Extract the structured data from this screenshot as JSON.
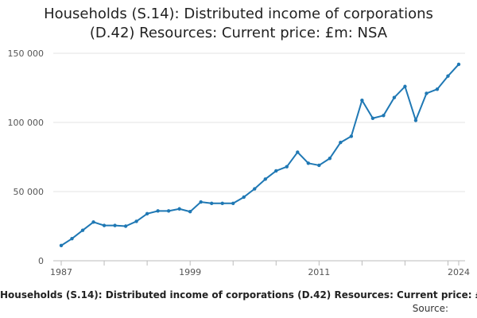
{
  "chart_data": {
    "type": "line",
    "title": "Households (S.14): Distributed income of corporations (D.42) Resources: Current price: £m: NSA",
    "xlabel": "",
    "ylabel": "",
    "x": [
      1987,
      1988,
      1989,
      1990,
      1991,
      1992,
      1993,
      1994,
      1995,
      1996,
      1997,
      1998,
      1999,
      2000,
      2001,
      2002,
      2003,
      2004,
      2005,
      2006,
      2007,
      2008,
      2009,
      2010,
      2011,
      2012,
      2013,
      2014,
      2015,
      2016,
      2017,
      2018,
      2019,
      2020,
      2021,
      2022,
      2023,
      2024
    ],
    "series": [
      {
        "name": "Households (S.14): Distributed income of corporations (D.42) Resources: Current price: £m: NSA",
        "color": "#1f78b4",
        "values": [
          11000,
          16000,
          22000,
          28000,
          25500,
          25500,
          25000,
          28500,
          34000,
          36000,
          36000,
          37500,
          35500,
          42500,
          41500,
          41500,
          41500,
          46000,
          52000,
          59000,
          65000,
          68000,
          78500,
          70500,
          69000,
          74000,
          85500,
          90000,
          116000,
          103000,
          105000,
          118000,
          126000,
          101500,
          121000,
          124000,
          133500,
          142000
        ]
      }
    ],
    "xticks": [
      "1987",
      "1999",
      "2011",
      "2024"
    ],
    "yticks": [
      "0",
      "50 000",
      "100 000",
      "150 000"
    ],
    "ytick_values": [
      0,
      50000,
      100000,
      150000
    ],
    "ylim": [
      0,
      150000
    ],
    "xlim": [
      1987,
      2024
    ],
    "grid": true,
    "legend": "bottom",
    "source_label": "Source:"
  }
}
